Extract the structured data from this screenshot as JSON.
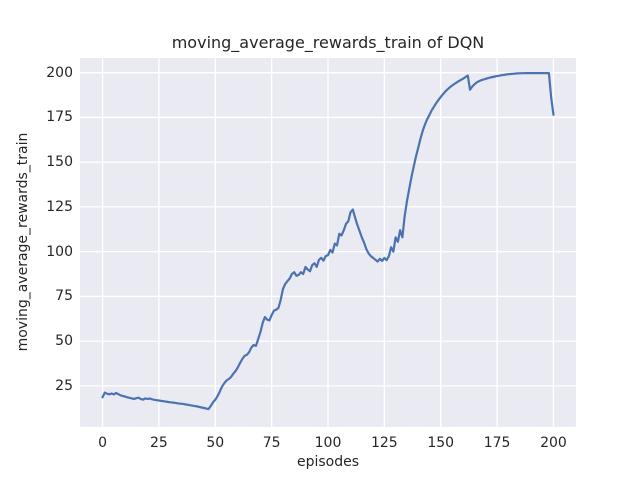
{
  "chart_data": {
    "type": "line",
    "title": "moving_average_rewards_train of DQN",
    "xlabel": "episodes",
    "ylabel": "moving_average_rewards_train",
    "x_ticks": [
      0,
      25,
      50,
      75,
      100,
      125,
      150,
      175,
      200
    ],
    "y_ticks": [
      25,
      50,
      75,
      100,
      125,
      150,
      175,
      200
    ],
    "xlim": [
      -10,
      210
    ],
    "ylim": [
      2,
      208.5
    ],
    "grid": true,
    "legend": false,
    "style": "seaborn-darkgrid",
    "colors": {
      "line": "#4c72b0",
      "axes_background": "#eaeaf2",
      "grid": "#ffffff",
      "text": "#262626",
      "figure_background": "#ffffff"
    },
    "series": [
      {
        "name": "moving_average_rewards_train",
        "x_note": "episode = array index, 0 to 200 step 1",
        "values": [
          18.6,
          21.2,
          20.6,
          20.3,
          20.7,
          20.2,
          21.0,
          20.4,
          19.7,
          19.3,
          19.0,
          18.6,
          18.3,
          18.0,
          17.7,
          18.1,
          18.4,
          17.6,
          17.3,
          18.0,
          17.7,
          17.9,
          17.5,
          17.2,
          17.0,
          16.8,
          16.6,
          16.4,
          16.2,
          16.0,
          15.8,
          15.7,
          15.5,
          15.3,
          15.1,
          15.0,
          14.8,
          14.6,
          14.4,
          14.1,
          13.9,
          13.7,
          13.5,
          13.2,
          12.9,
          12.6,
          12.3,
          12.0,
          13.8,
          15.8,
          17.2,
          19.2,
          21.8,
          24.5,
          26.5,
          28.0,
          28.8,
          30.0,
          31.8,
          33.3,
          35.3,
          37.8,
          40.0,
          41.8,
          42.3,
          43.8,
          46.3,
          47.8,
          47.3,
          51.0,
          55.0,
          60.0,
          63.5,
          62.0,
          61.5,
          64.5,
          67.0,
          67.5,
          68.5,
          73.0,
          79.0,
          82.0,
          83.5,
          85.0,
          87.5,
          88.5,
          86.5,
          87.0,
          88.5,
          87.5,
          91.5,
          90.0,
          89.0,
          92.5,
          93.5,
          91.5,
          95.5,
          96.5,
          95.0,
          97.5,
          98.0,
          101.0,
          99.5,
          104.5,
          103.5,
          110.0,
          109.0,
          112.0,
          115.5,
          117.0,
          122.0,
          123.5,
          119.0,
          115.0,
          111.5,
          108.0,
          105.0,
          101.5,
          99.0,
          97.5,
          96.5,
          95.5,
          94.5,
          96.0,
          94.8,
          96.5,
          95.2,
          97.5,
          102.5,
          100.0,
          108.0,
          105.5,
          112.0,
          108.0,
          120.0,
          128.0,
          135.0,
          141.5,
          147.5,
          153.0,
          158.0,
          163.0,
          167.5,
          171.0,
          174.0,
          176.5,
          179.0,
          181.0,
          183.0,
          184.8,
          186.4,
          188.0,
          189.4,
          190.7,
          191.8,
          192.8,
          193.7,
          194.5,
          195.3,
          196.0,
          196.7,
          197.6,
          198.4,
          190.5,
          192.3,
          193.6,
          194.6,
          195.3,
          195.8,
          196.2,
          196.6,
          197.0,
          197.3,
          197.6,
          197.9,
          198.1,
          198.35,
          198.6,
          198.8,
          199.0,
          199.15,
          199.3,
          199.4,
          199.5,
          199.6,
          199.65,
          199.7,
          199.75,
          199.8,
          199.8,
          199.8,
          199.8,
          199.8,
          199.8,
          199.8,
          199.8,
          199.8,
          199.8,
          199.8,
          186.0,
          176.5
        ]
      }
    ]
  }
}
